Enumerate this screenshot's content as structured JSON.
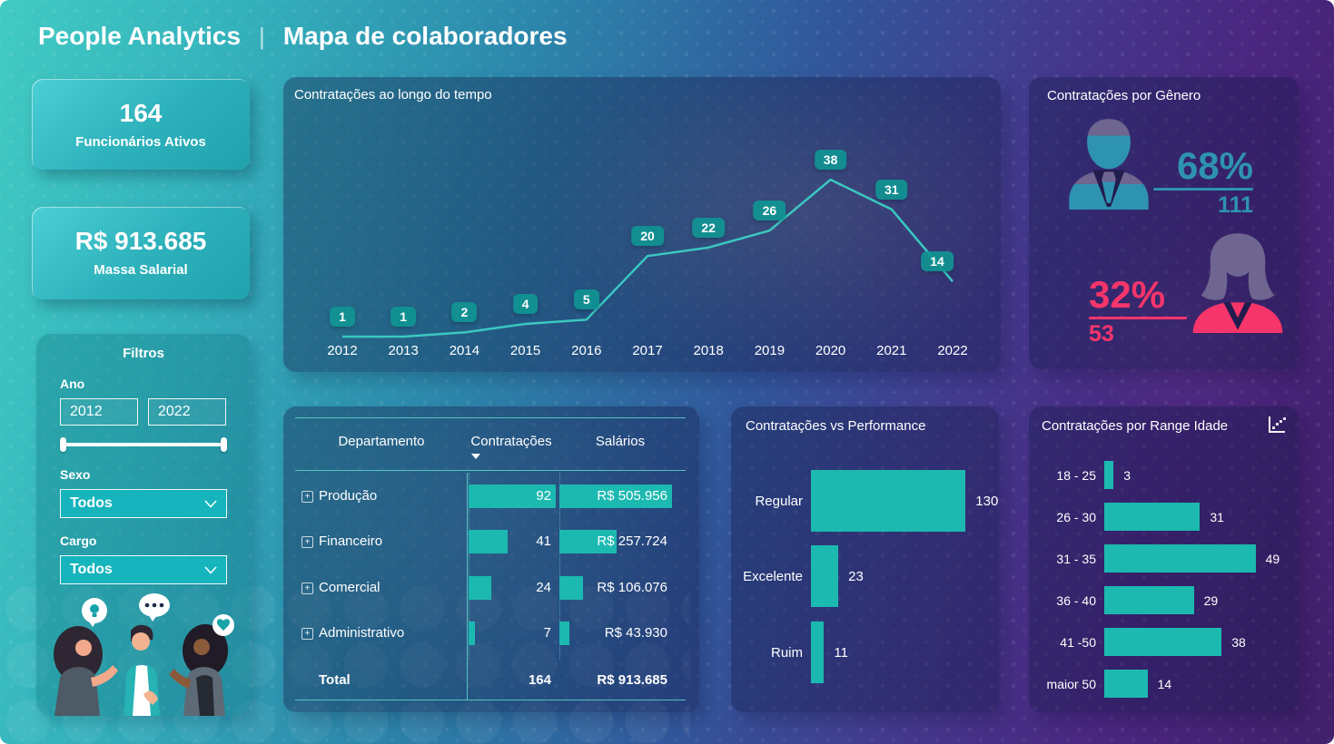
{
  "header": {
    "title_left": "People Analytics",
    "divider": "|",
    "title_right": "Mapa de colaboradores"
  },
  "kpi_cards": [
    {
      "value": "164",
      "label": "Funcionários Ativos"
    },
    {
      "value": "R$ 913.685",
      "label": "Massa Salarial"
    }
  ],
  "filters": {
    "title": "Filtros",
    "year_label": "Ano",
    "year_from": "2012",
    "year_to": "2022",
    "sexo_label": "Sexo",
    "sexo_value": "Todos",
    "cargo_label": "Cargo",
    "cargo_value": "Todos"
  },
  "chart_data": [
    {
      "type": "line",
      "title": "Contratações ao longo do tempo",
      "x": [
        "2012",
        "2013",
        "2014",
        "2015",
        "2016",
        "2017",
        "2018",
        "2019",
        "2020",
        "2021",
        "2022"
      ],
      "values": [
        1,
        1,
        2,
        4,
        5,
        20,
        22,
        26,
        38,
        31,
        14
      ],
      "series_name": "Contratações",
      "ylim": [
        0,
        40
      ],
      "grid": false,
      "data_labels": true,
      "line_color": "#3BC8C0"
    },
    {
      "type": "pictogram",
      "title": "Contratações por Gênero",
      "male": {
        "pct": "68%",
        "count": "111",
        "color": "#2E93B1"
      },
      "female": {
        "pct": "32%",
        "count": "53",
        "color": "#F6356B"
      }
    },
    {
      "type": "table",
      "headers": {
        "dept": "Departamento",
        "cont": "Contratações",
        "sal": "Salários"
      },
      "rows": [
        {
          "dept": "Produção",
          "cont": "92",
          "cont_value": 92,
          "sal": "R$ 505.956",
          "sal_value": 505956
        },
        {
          "dept": "Financeiro",
          "cont": "41",
          "cont_value": 41,
          "sal": "R$ 257.724",
          "sal_value": 257724
        },
        {
          "dept": "Comercial",
          "cont": "24",
          "cont_value": 24,
          "sal": "R$ 106.076",
          "sal_value": 106076
        },
        {
          "dept": "Administrativo",
          "cont": "7",
          "cont_value": 7,
          "sal": "R$ 43.930",
          "sal_value": 43930
        }
      ],
      "total": {
        "dept": "Total",
        "cont": "164",
        "sal": "R$ 913.685"
      }
    },
    {
      "type": "bar",
      "title": "Contratações vs Performance",
      "orientation": "horizontal",
      "categories": [
        "Regular",
        "Excelente",
        "Ruim"
      ],
      "values": [
        130,
        23,
        11
      ],
      "xlim": [
        0,
        140
      ],
      "bar_color": "#1CB9B1"
    },
    {
      "type": "bar",
      "title": "Contratações por Range Idade",
      "orientation": "horizontal",
      "categories": [
        "18 - 25",
        "26 - 30",
        "31 - 35",
        "36 - 40",
        "41 -50",
        "maior 50"
      ],
      "values": [
        3,
        31,
        49,
        29,
        38,
        14
      ],
      "xlim": [
        0,
        55
      ],
      "bar_color": "#1CB9B1"
    }
  ],
  "icons": {
    "expand_glyph": "+",
    "dropdown": "chevron-down-icon",
    "sort": "caret-down-icon",
    "age_corner": "scatter-chart-icon"
  },
  "colors": {
    "accent_teal": "#1CB9B1",
    "line_teal": "#3BC8C0",
    "badge_teal": "#109492",
    "male_blue": "#2E93B1",
    "female_pink": "#F6356B"
  }
}
